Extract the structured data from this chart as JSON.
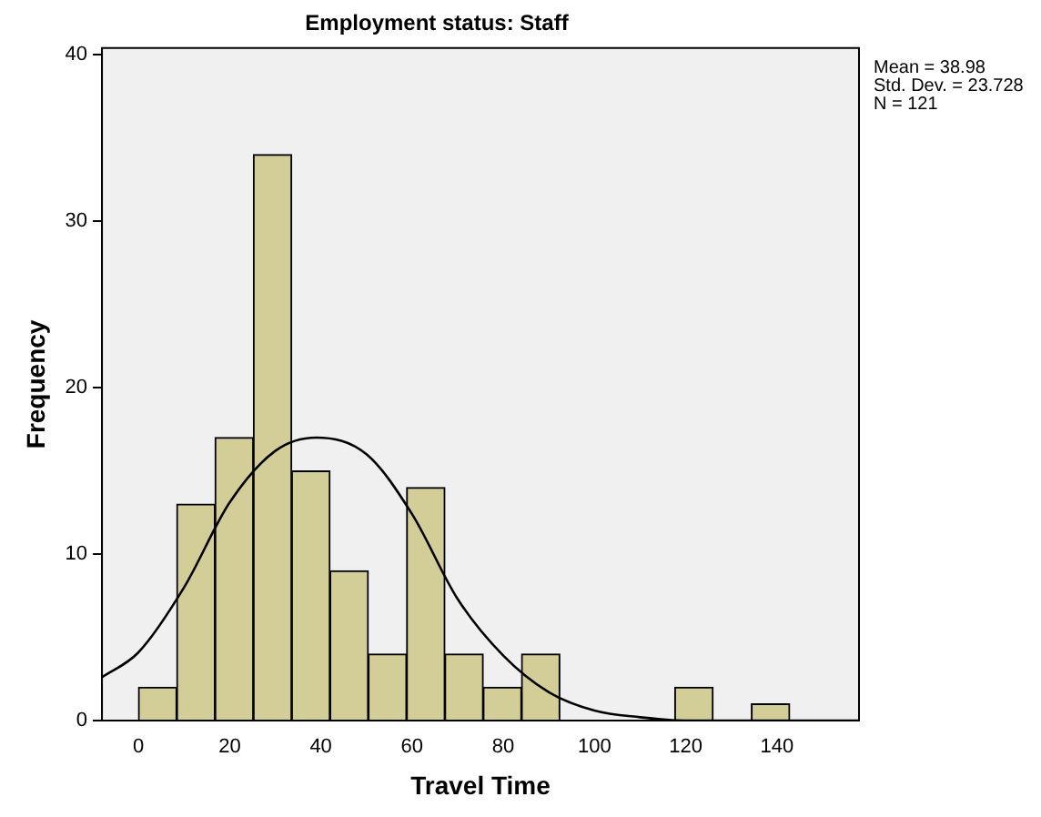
{
  "chart_data": {
    "type": "histogram",
    "title": "Employment status: Staff",
    "xlabel": "Travel Time",
    "ylabel": "Frequency",
    "bins": [
      0,
      8.4,
      16.8,
      25.2,
      33.6,
      42,
      50.4,
      58.8,
      67.2,
      75.6,
      84,
      92.4,
      100.8,
      109.2,
      117.6,
      126,
      134.4,
      142.8
    ],
    "values": [
      2,
      13,
      17,
      34,
      15,
      9,
      4,
      14,
      4,
      2,
      4,
      0,
      0,
      0,
      2,
      0,
      1
    ],
    "color": "#d3ce97",
    "series": [
      {
        "type": "line",
        "color": "#000000",
        "x": [
          -8,
          0,
          10,
          20,
          30,
          39,
          50,
          60,
          70,
          80,
          90,
          100,
          110,
          120,
          130,
          158
        ],
        "values": [
          2.6,
          4.1,
          8,
          13.1,
          16.2,
          17,
          16,
          12.4,
          7.3,
          3.9,
          1.7,
          0.6,
          0.2,
          0,
          0,
          0
        ]
      }
    ],
    "xlim": [
      -8,
      158
    ],
    "xticks": [
      0,
      20,
      40,
      60,
      80,
      100,
      120,
      140
    ],
    "ylim": [
      0,
      40.4
    ],
    "yticks": [
      0,
      10,
      20,
      30,
      40
    ],
    "grid": false,
    "legend": false,
    "annotations": [
      "Mean = 38.98\nStd. Dev. = 23.728\nN = 121"
    ]
  }
}
